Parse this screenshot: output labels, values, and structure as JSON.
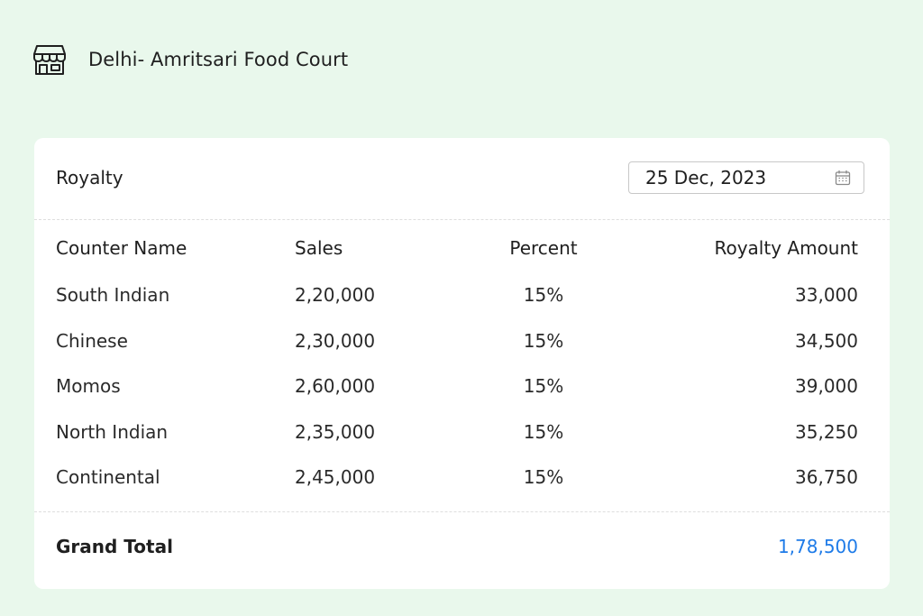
{
  "header": {
    "icon": "store-icon",
    "title": "Delhi- Amritsari Food Court"
  },
  "royalty": {
    "label": "Royalty",
    "date": "25 Dec, 2023",
    "date_icon": "calendar-icon"
  },
  "table": {
    "headers": {
      "name": "Counter Name",
      "sales": "Sales",
      "percent": "Percent",
      "amount": "Royalty Amount"
    },
    "rows": [
      {
        "name": "South Indian",
        "sales": "2,20,000",
        "percent": "15%",
        "amount": "33,000"
      },
      {
        "name": "Chinese",
        "sales": "2,30,000",
        "percent": "15%",
        "amount": "34,500"
      },
      {
        "name": "Momos",
        "sales": "2,60,000",
        "percent": "15%",
        "amount": "39,000"
      },
      {
        "name": "North Indian",
        "sales": "2,35,000",
        "percent": "15%",
        "amount": "35,250"
      },
      {
        "name": "Continental",
        "sales": "2,45,000",
        "percent": "15%",
        "amount": "36,750"
      }
    ]
  },
  "total": {
    "label": "Grand Total",
    "value": "1,78,500",
    "value_color": "#1e7be8"
  }
}
